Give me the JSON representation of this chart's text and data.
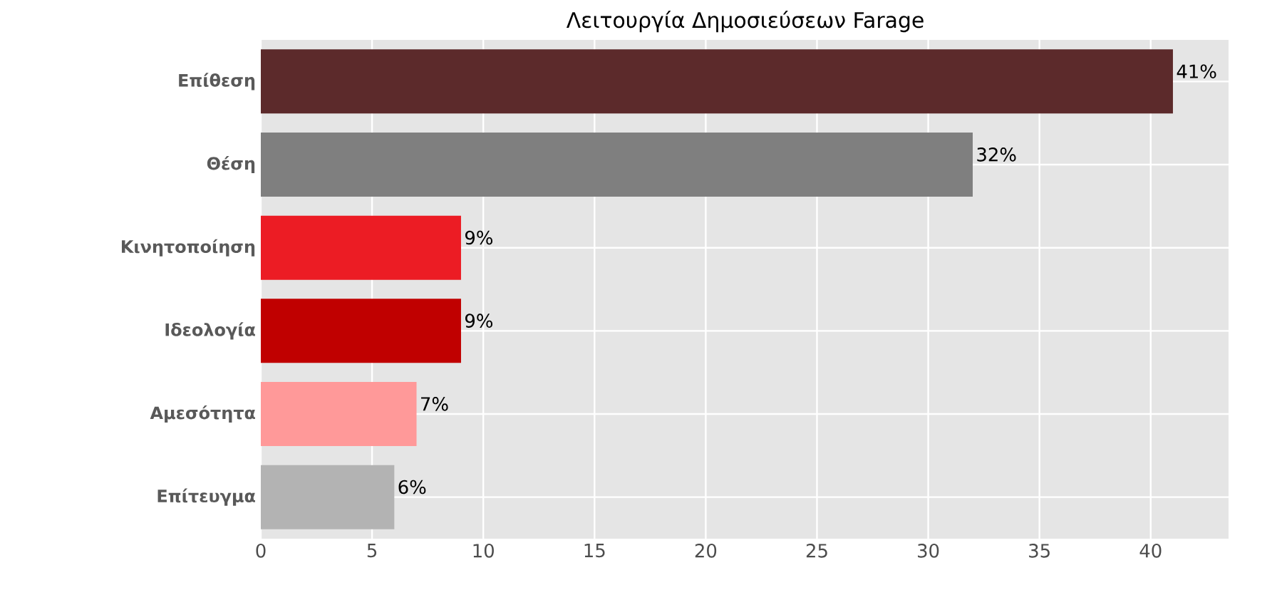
{
  "chart_data": {
    "type": "bar",
    "orientation": "horizontal",
    "title": "Λειτουργία Δημοσιεύσεων Farage",
    "categories": [
      "Επίθεση",
      "Θέση",
      "Κινητοποίηση",
      "Ιδεολογία",
      "Αμεσότητα",
      "Επίτευγμα"
    ],
    "values": [
      41,
      32,
      9,
      9,
      7,
      6
    ],
    "colors": [
      "#5c2a2b",
      "#7f7f7f",
      "#ec1c24",
      "#c00000",
      "#ff9999",
      "#b3b3b3"
    ],
    "value_labels": [
      "41%",
      "32%",
      "9%",
      "9%",
      "7%",
      "6%"
    ],
    "xlim": [
      0,
      43.5
    ],
    "xticks": [
      0,
      5,
      10,
      15,
      20,
      25,
      30,
      35,
      40
    ],
    "grid": true
  }
}
